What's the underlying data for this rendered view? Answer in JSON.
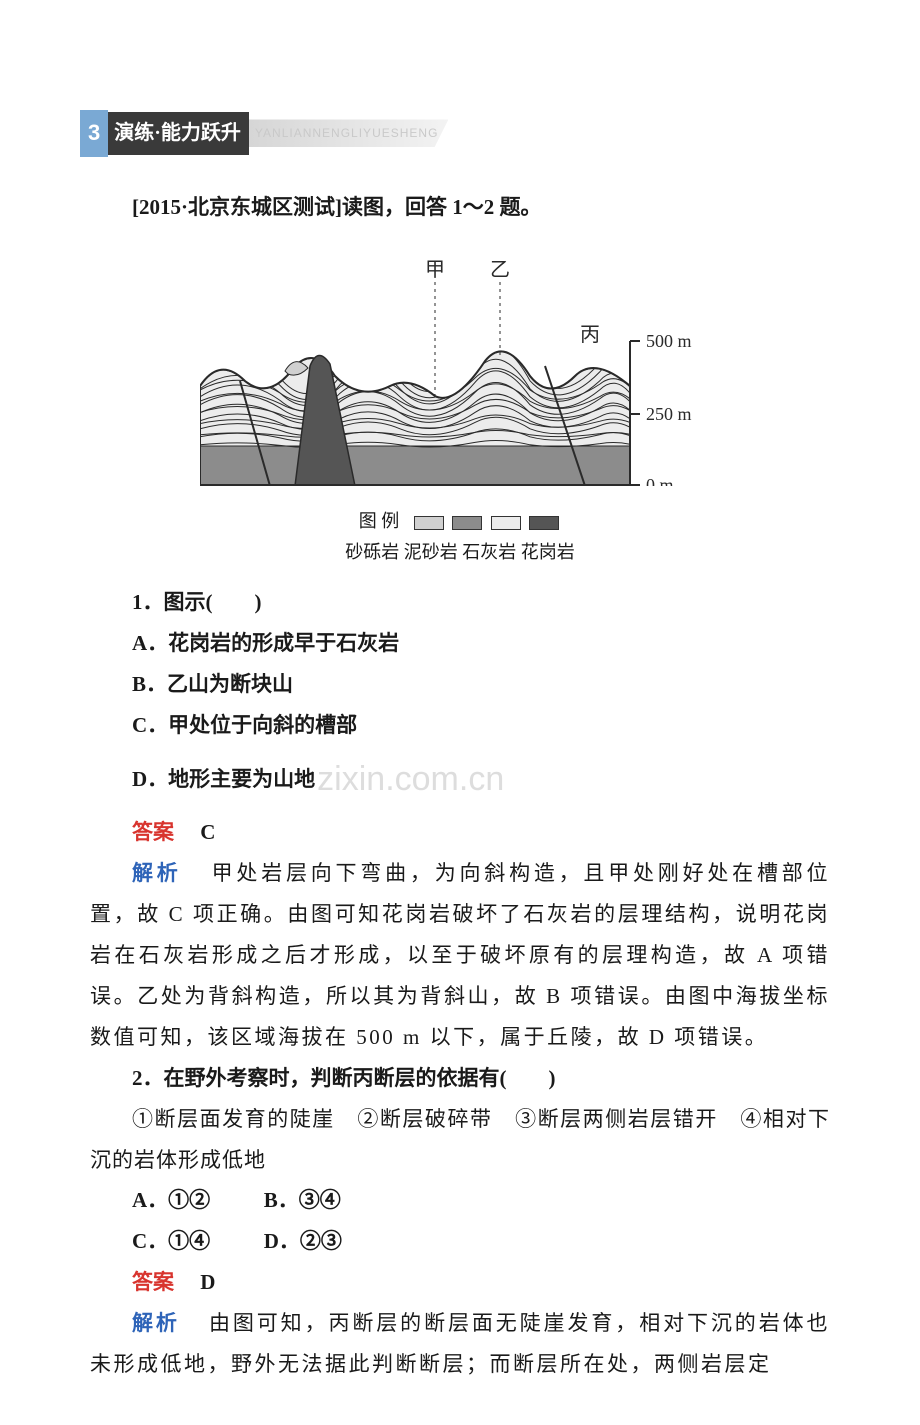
{
  "section_tag": {
    "number": "3",
    "title": "演练·能力跃升",
    "pinyin": "YANLIANNENGLIYUESHENG"
  },
  "intro": "[2015·北京东城区测试]读图，回答 1～2 题。",
  "figure": {
    "labels": {
      "jia": "甲",
      "yi": "乙",
      "bing": "丙"
    },
    "scale": {
      "t500": "500 m",
      "t250": "250 m",
      "t0": "0 m"
    },
    "legend_title": "图 例",
    "rocks": {
      "sandy": {
        "name": "砂砾岩",
        "color": "#d0d0d0"
      },
      "mudsand": {
        "name": "泥砂岩",
        "color": "#8c8c8c"
      },
      "limestone": {
        "name": "石灰岩",
        "color": "#ececec"
      },
      "granite": {
        "name": "花岗岩",
        "color": "#555555"
      }
    },
    "stroke": "#2a2a2a"
  },
  "q1": {
    "stem": "1．图示(　　)",
    "A": "A．花岗岩的形成早于石灰岩",
    "B": "B．乙山为断块山",
    "C": "C．甲处位于向斜的槽部",
    "D": "D．地形主要为山地",
    "answer_label": "答案",
    "answer": "C",
    "explain_label": "解析",
    "explain": "甲处岩层向下弯曲，为向斜构造，且甲处刚好处在槽部位置，故 C 项正确。由图可知花岗岩破坏了石灰岩的层理结构，说明花岗岩在石灰岩形成之后才形成，以至于破坏原有的层理构造，故 A 项错误。乙处为背斜构造，所以其为背斜山，故 B 项错误。由图中海拔坐标数值可知，该区域海拔在 500 m 以下，属于丘陵，故 D 项错误。"
  },
  "q2": {
    "stem": "2．在野外考察时，判断丙断层的依据有(　　)",
    "choices_line": "①断层面发育的陡崖　②断层破碎带　③断层两侧岩层错开　④相对下沉的岩体形成低地",
    "A": "A．①②",
    "B": "B．③④",
    "C": "C．①④",
    "D": "D．②③",
    "answer_label": "答案",
    "answer": "D",
    "explain_label": "解析",
    "explain": "由图可知，丙断层的断层面无陡崖发育，相对下沉的岩体也未形成低地，野外无法据此判断断层；而断层所在处，两侧岩层定"
  },
  "watermark": "zixin.com.cn"
}
